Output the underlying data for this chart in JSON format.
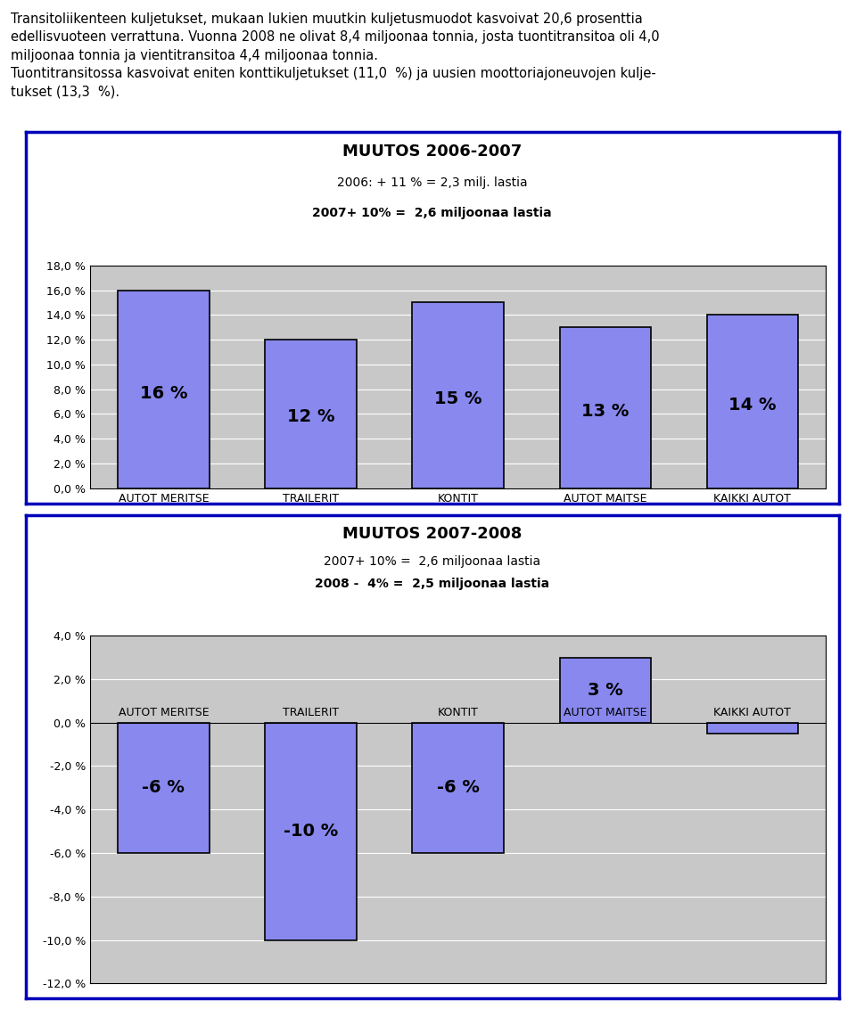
{
  "text_line1": "Transitoliikenteen kuljetukset, mukaan lukien muutkin kuljetusmuodot kasvoivat 20,6 prosenttia",
  "text_line2": "edellisvuoteen verrattuna. Vuonna 2008 ne olivat 8,4 miljoonaa tonnia, josta tuontitransitoa oli 4,0",
  "text_line3": "miljoonaa tonnia ja vientitransitoa 4,4 miljoonaa tonnia.",
  "text_line4": "Tuontitransitossa kasvoivat eniten konttikuljetukset (11,0  %) ja uusien moottoriajoneuvojen kulje-",
  "text_line5": "tukset (13,3  %).",
  "chart1_title": "MUUTOS 2006-2007",
  "chart1_subtitle1": "2006: + 11 % = 2,3 milj. lastia",
  "chart1_subtitle2": "2007+ 10% =  2,6 miljoonaa lastia",
  "chart1_categories": [
    "AUTOT MERITSE",
    "TRAILERIT",
    "KONTIT",
    "AUTOT MAITSE",
    "KAIKKI AUTOT"
  ],
  "chart1_values": [
    16,
    12,
    15,
    13,
    14
  ],
  "chart1_labels": [
    "16 %",
    "12 %",
    "15 %",
    "13 %",
    "14 %"
  ],
  "chart1_ylim": [
    0,
    18
  ],
  "chart1_yticks": [
    0,
    2,
    4,
    6,
    8,
    10,
    12,
    14,
    16,
    18
  ],
  "chart1_ytick_labels": [
    "0,0 %",
    "2,0 %",
    "4,0 %",
    "6,0 %",
    "8,0 %",
    "10,0 %",
    "12,0 %",
    "14,0 %",
    "16,0 %",
    "18,0 %"
  ],
  "chart2_title": "MUUTOS 2007-2008",
  "chart2_subtitle1": "2007+ 10% =  2,6 miljoonaa lastia",
  "chart2_subtitle2": "2008 -  4% =  2,5 miljoonaa lastia",
  "chart2_categories": [
    "AUTOT MERITSE",
    "TRAILERIT",
    "KONTIT",
    "AUTOT MAITSE",
    "KAIKKI AUTOT"
  ],
  "chart2_values": [
    -6,
    -10,
    -6,
    3,
    -0.5
  ],
  "chart2_labels": [
    "-6 %",
    "-10 %",
    "-6 %",
    "3 %",
    ""
  ],
  "chart2_ylim": [
    -12,
    4
  ],
  "chart2_yticks": [
    -12,
    -10,
    -8,
    -6,
    -4,
    -2,
    0,
    2,
    4
  ],
  "chart2_ytick_labels": [
    "-12,0 %",
    "-10,0 %",
    "-8,0 %",
    "-6,0 %",
    "-4,0 %",
    "-2,0 %",
    "0,0 %",
    "2,0 %",
    "4,0 %"
  ],
  "bar_color": "#8888EE",
  "bar_edge_color": "#000000",
  "plot_bg_color": "#C8C8C8",
  "box_border_color": "#0000BB",
  "title_fontsize": 13,
  "subtitle_fontsize": 10,
  "label_fontsize": 14,
  "tick_fontsize": 9,
  "cat_fontsize": 9
}
